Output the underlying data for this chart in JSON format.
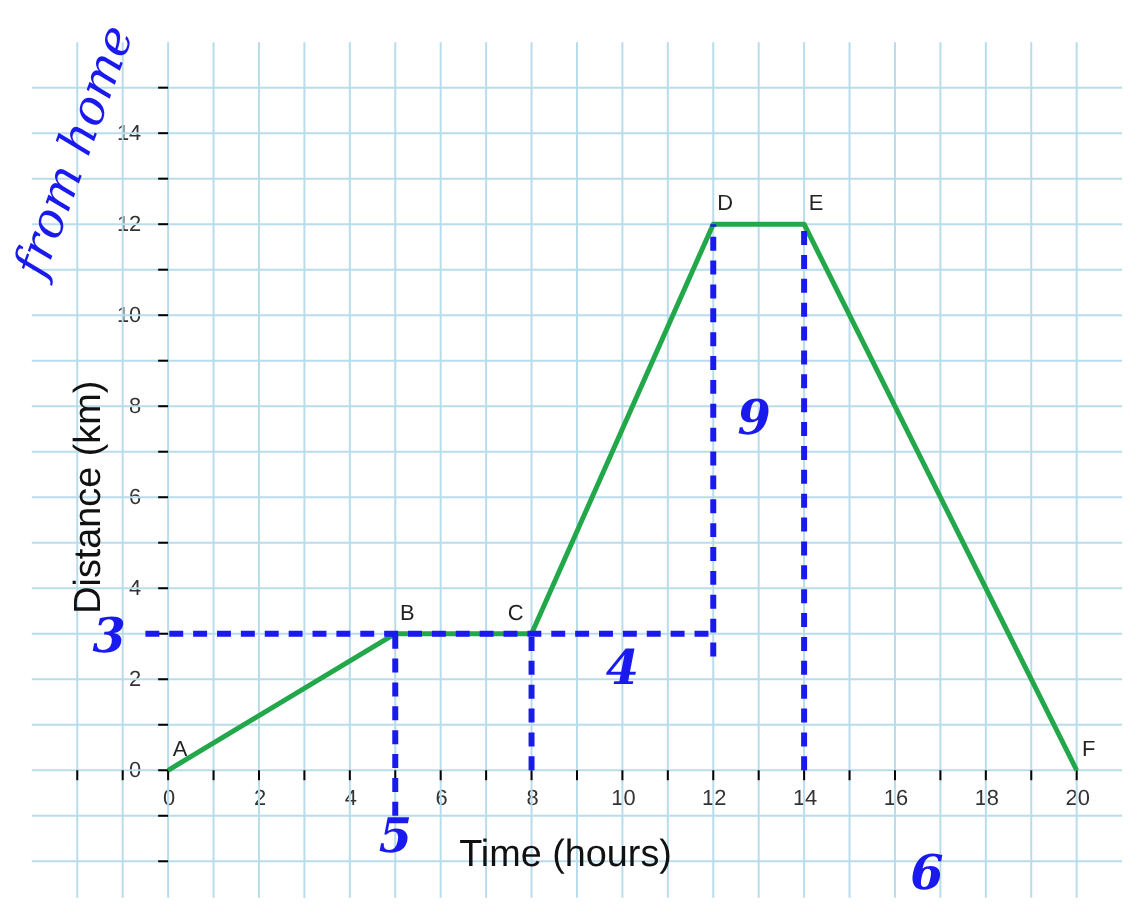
{
  "chart_data": {
    "type": "line",
    "xlabel": "Time (hours)",
    "ylabel": "Distance (km)",
    "xlim": [
      -3,
      21
    ],
    "ylim": [
      -2.8,
      16
    ],
    "xticks": [
      {
        "value": -2,
        "label": null
      },
      {
        "value": -1,
        "label": null
      },
      0,
      {
        "value": 1,
        "label": null
      },
      2,
      {
        "value": 3,
        "label": null
      },
      4,
      {
        "value": 5,
        "label": null
      },
      6,
      {
        "value": 7,
        "label": null
      },
      8,
      {
        "value": 9,
        "label": null
      },
      10,
      {
        "value": 11,
        "label": null
      },
      12,
      {
        "value": 13,
        "label": null
      },
      14,
      {
        "value": 15,
        "label": null
      },
      16,
      {
        "value": 17,
        "label": null
      },
      18,
      {
        "value": 19,
        "label": null
      },
      20
    ],
    "yticks": [
      {
        "value": -2,
        "label": null
      },
      {
        "value": -1,
        "label": null
      },
      0,
      {
        "value": 1,
        "label": null
      },
      2,
      {
        "value": 3,
        "label": null
      },
      4,
      {
        "value": 5,
        "label": null
      },
      6,
      {
        "value": 7,
        "label": null
      },
      8,
      {
        "value": 9,
        "label": null
      },
      10,
      {
        "value": 11,
        "label": null
      },
      12,
      {
        "value": 13,
        "label": null
      },
      14,
      {
        "value": 15,
        "label": null
      }
    ],
    "grid": true,
    "series": [
      {
        "color": "#22a84a",
        "x": [
          0,
          5,
          8,
          12,
          14,
          20
        ],
        "values": [
          0,
          3,
          3,
          12,
          12,
          0
        ],
        "line_style": "solid"
      },
      {
        "color": "#1a1aee",
        "x": [
          -0.5,
          12
        ],
        "values": [
          3,
          3
        ],
        "line_style": "dashed"
      },
      {
        "color": "#1a1aee",
        "x": [
          12,
          12
        ],
        "values": [
          2.5,
          12
        ],
        "line_style": "dashed"
      },
      {
        "color": "#1a1aee",
        "x": [
          5,
          5
        ],
        "values": [
          -1,
          3
        ],
        "line_style": "dashed"
      },
      {
        "color": "#1a1aee",
        "x": [
          8,
          8
        ],
        "values": [
          0,
          3
        ],
        "line_style": "dashed"
      },
      {
        "color": "#1a1aee",
        "x": [
          14,
          14
        ],
        "values": [
          0,
          12
        ],
        "line_style": "dashed"
      }
    ],
    "annotations": [
      "A",
      "B",
      "C",
      "D",
      "E",
      "F",
      "3",
      "5",
      "4",
      "9",
      "6",
      "from home"
    ]
  }
}
